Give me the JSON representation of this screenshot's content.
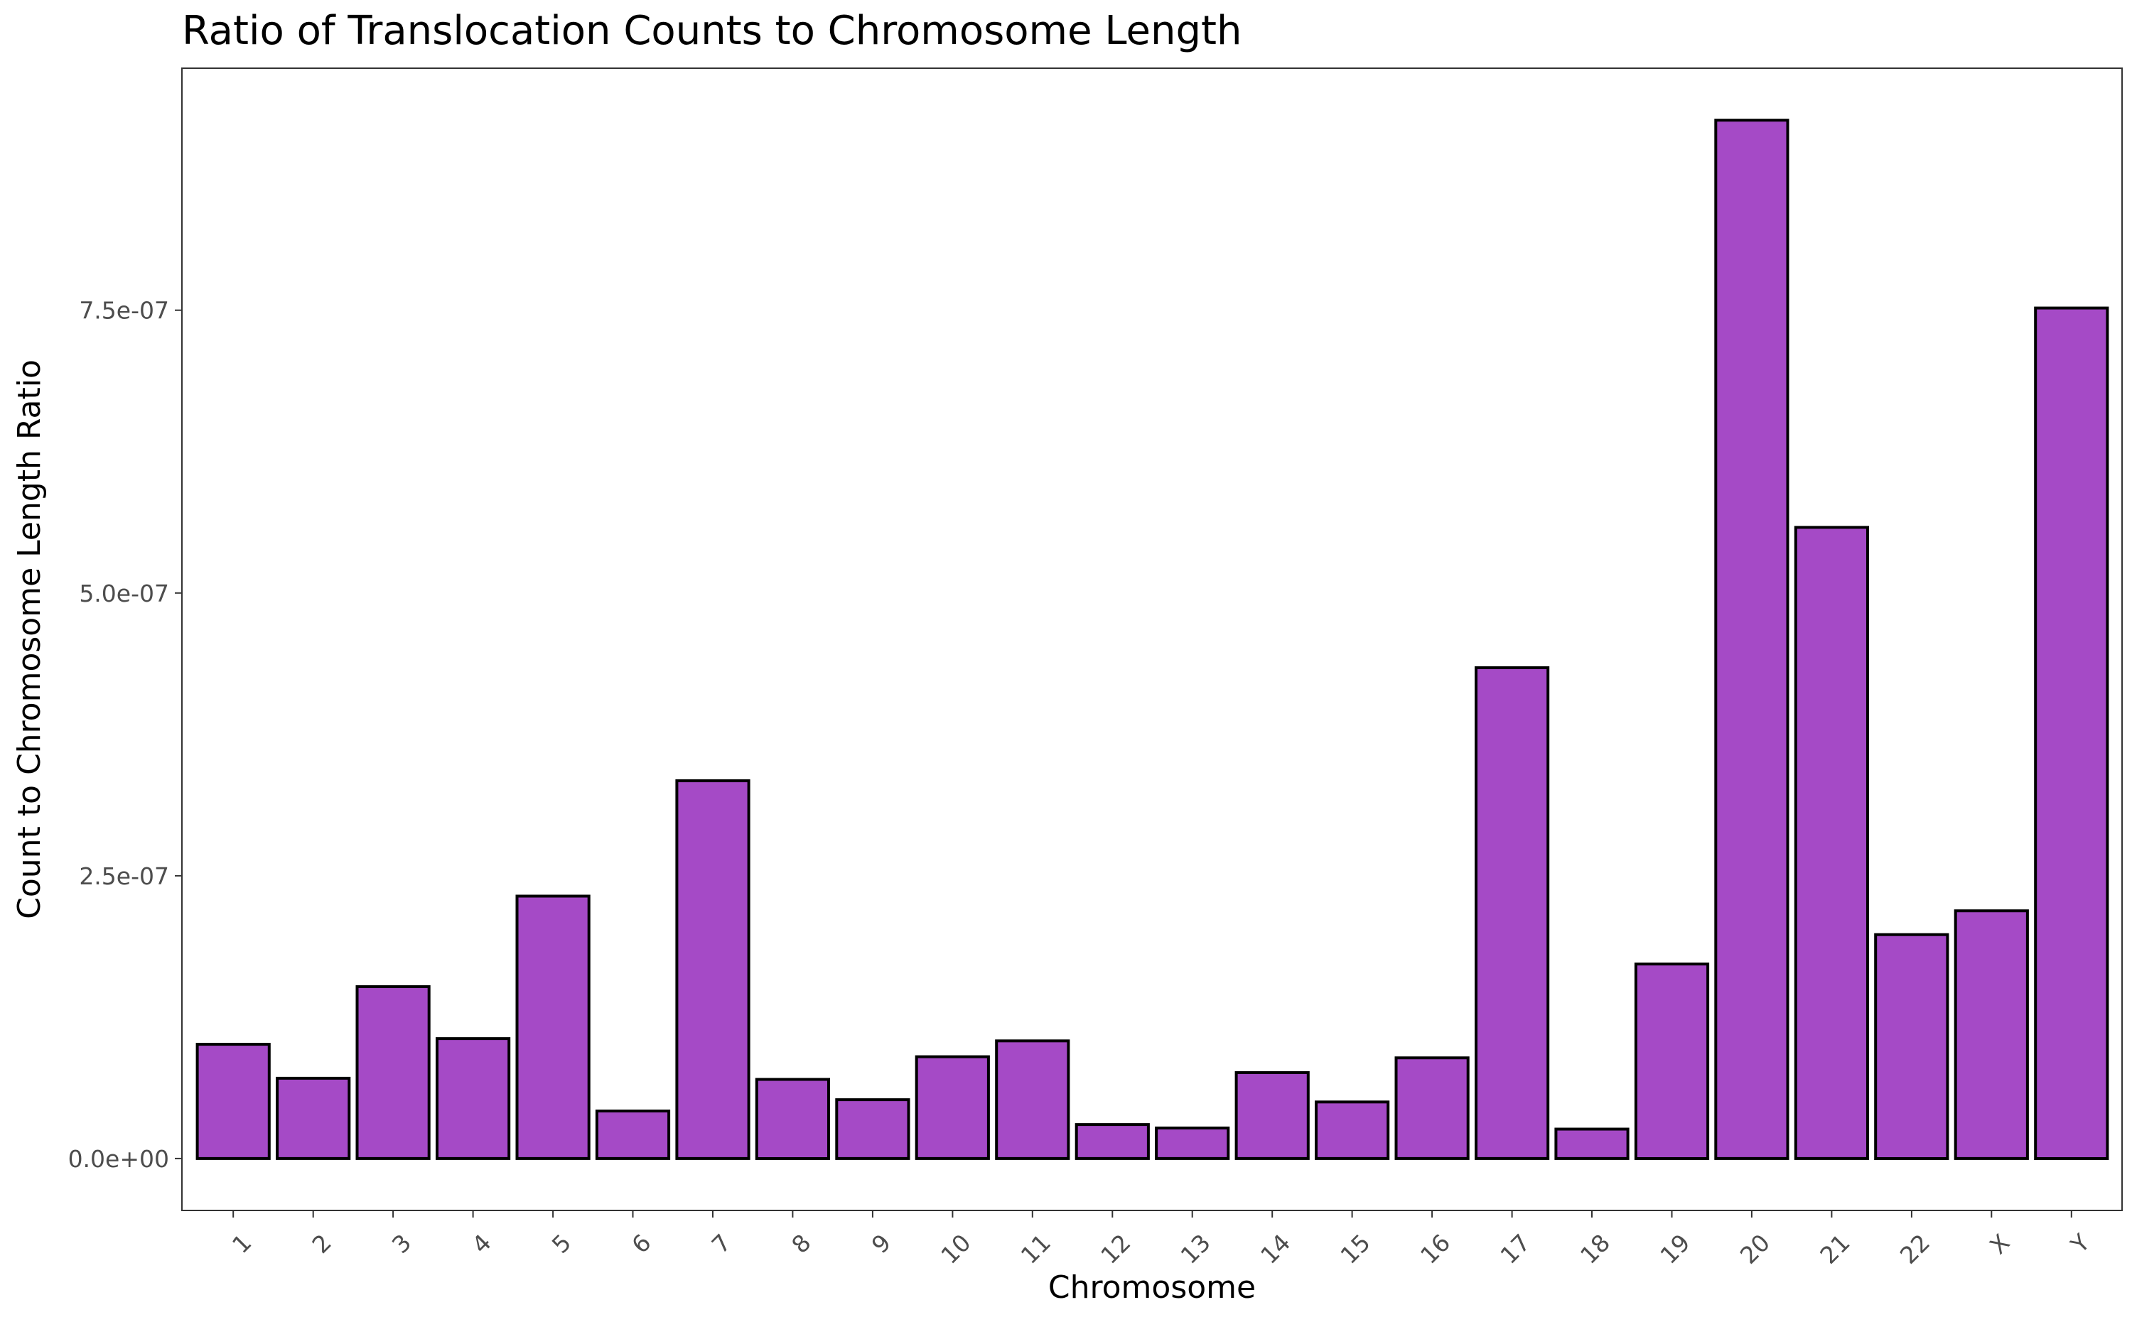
{
  "chart_data": {
    "type": "bar",
    "title": "Ratio of Translocation Counts to Chromosome Length",
    "xlabel": "Chromosome",
    "ylabel": "Count to Chromosome Length Ratio",
    "categories": [
      "1",
      "2",
      "3",
      "4",
      "5",
      "6",
      "7",
      "8",
      "9",
      "10",
      "11",
      "12",
      "13",
      "14",
      "15",
      "16",
      "17",
      "18",
      "19",
      "20",
      "21",
      "22",
      "X",
      "Y"
    ],
    "values": [
      1.01e-07,
      7.1e-08,
      1.52e-07,
      1.06e-07,
      2.32e-07,
      4.2e-08,
      3.34e-07,
      7e-08,
      5.2e-08,
      9e-08,
      1.04e-07,
      3e-08,
      2.7e-08,
      7.6e-08,
      5e-08,
      8.9e-08,
      4.34e-07,
      2.6e-08,
      1.72e-07,
      9.18e-07,
      5.58e-07,
      1.98e-07,
      2.19e-07,
      7.52e-07
    ],
    "yticks": [
      0,
      2.5e-07,
      5e-07,
      7.5e-07
    ],
    "ytick_labels": [
      "0.0e+00",
      "2.5e-07",
      "5.0e-07",
      "7.5e-07"
    ],
    "ylim": [
      -4.59e-08,
      9.64e-07
    ],
    "bar_color": "#a54ac6",
    "grid": false,
    "legend": "none"
  }
}
